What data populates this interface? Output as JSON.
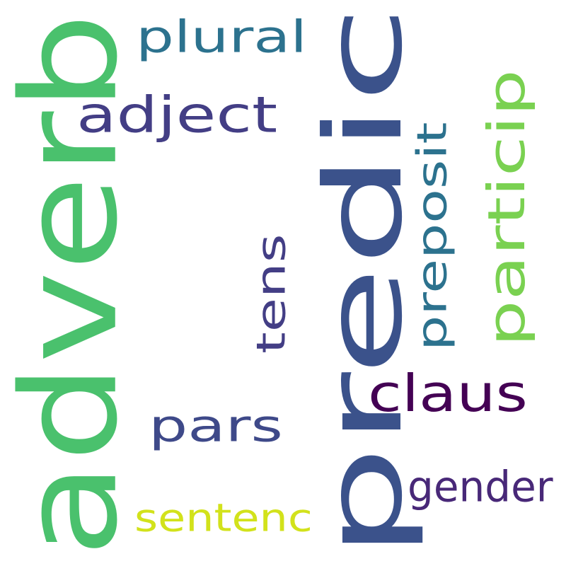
{
  "word_cloud": {
    "background": "#ffffff",
    "words": [
      {
        "text": "predic",
        "color": "#3b528b",
        "orientation": "vertical"
      },
      {
        "text": "adverb",
        "color": "#4ac16d",
        "orientation": "vertical"
      },
      {
        "text": "plural",
        "color": "#2c728e",
        "orientation": "horizontal"
      },
      {
        "text": "adject",
        "color": "#433e85",
        "orientation": "horizontal"
      },
      {
        "text": "particip",
        "color": "#7ad151",
        "orientation": "vertical"
      },
      {
        "text": "preposit",
        "color": "#2c728e",
        "orientation": "vertical"
      },
      {
        "text": "tens",
        "color": "#433e85",
        "orientation": "vertical"
      },
      {
        "text": "claus",
        "color": "#440154",
        "orientation": "horizontal"
      },
      {
        "text": "pars",
        "color": "#3e4989",
        "orientation": "horizontal"
      },
      {
        "text": "gender",
        "color": "#482878",
        "orientation": "horizontal"
      },
      {
        "text": "sentenc",
        "color": "#d2e21b",
        "orientation": "horizontal"
      }
    ]
  }
}
